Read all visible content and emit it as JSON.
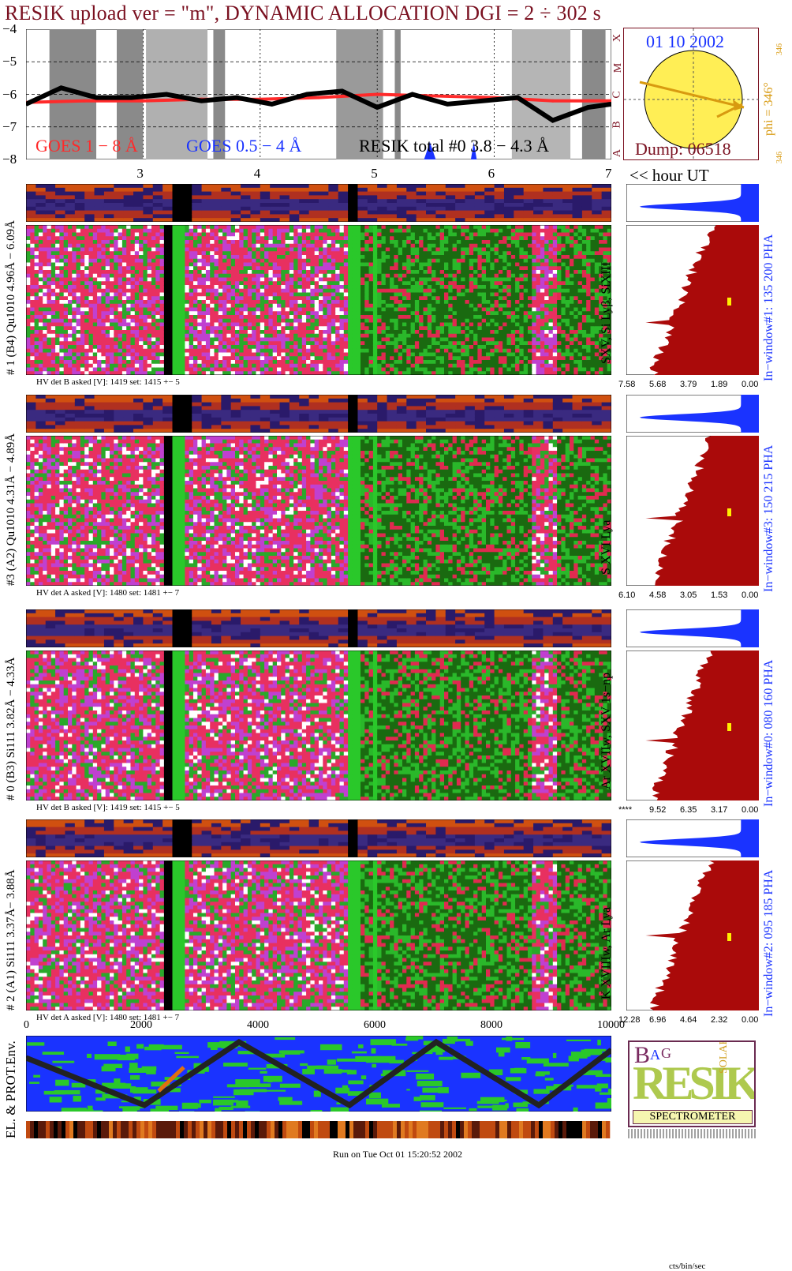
{
  "title": "RESIK upload ver = \"m\", DYNAMIC ALLOCATION  DGI =   2 ÷ 302 s",
  "goes": {
    "y_ticks": [
      "−4",
      "−5",
      "−6",
      "−7",
      "−8"
    ],
    "legend_goes_long": "GOES 1 − 8 Å",
    "legend_goes_short": "GOES 0.5 − 4 Å",
    "legend_resik": "RESIK total #0  3.8 − 4.3 Å",
    "class_letters": [
      "X",
      "M",
      "C",
      "B",
      "A"
    ],
    "hour_ticks": [
      "3",
      "4",
      "5",
      "6",
      "7"
    ],
    "hour_label": "<< hour UT",
    "colors": {
      "goes_long": "#ff2a2a",
      "goes_short": "#1a33ff",
      "resik": "#000000"
    }
  },
  "sun": {
    "date": "01 10 2002",
    "phi": "phi = 346°",
    "phi_small_top": "346",
    "phi_small_bottom": "346",
    "dump": "Dump: 06518"
  },
  "panels": [
    {
      "left_label": "# 1 (B4) Qu1010 4.96Å − 6.09Å",
      "right_label": "SXV, Si Lyβ, SiXIII",
      "window_label": "In−window#1:  135 200 PHA",
      "hv": "HV det B asked [V]:  1419 set:  1415  +−    5",
      "scale": [
        "7.58",
        "5.68",
        "3.79",
        "1.89",
        "0.00"
      ]
    },
    {
      "left_label": "#3 (A2) Qu1010  4.31Å − 4.89Å",
      "right_label": "S XVI Lya",
      "window_label": "In−window#3:  150 215 PHA",
      "hv": "HV det A asked [V]:  1480 set:  1481  +−    7",
      "scale": [
        "6.10",
        "4.58",
        "3.05",
        "1.53",
        "0.00"
      ]
    },
    {
      "left_label": "# 0 (B3) Si111  3.82Å − 4.33Å",
      "right_label": "Ar XVIIw, SXV 1s−np",
      "window_label": "In−window#0:  080 160 PHA",
      "hv": "HV det B asked [V]:  1419 set:  1415  +−    5",
      "scale": [
        "****",
        "9.52",
        "6.35",
        "3.17",
        "0.00"
      ]
    },
    {
      "left_label": "# 2 (A1) Si111  3.37Å− 3.88Å",
      "right_label": "K XVIIIw, Ar Lya",
      "window_label": "In−window#2:  095 185 PHA",
      "hv": "HV det A asked [V]:  1480 set:  1481  +−    7",
      "scale": [
        "12.28",
        "6.96",
        "4.64",
        "2.32",
        "0.00"
      ]
    }
  ],
  "x_ticks": [
    "0",
    "2000",
    "4000",
    "6000",
    "8000",
    "10000"
  ],
  "cts_label": "cts/bin/sec",
  "env_label": "EL. & PROT.Env.",
  "logo": {
    "big": "RESIK",
    "letters": [
      "B",
      "A",
      "G",
      "SOLAR"
    ],
    "banner": "SPECTROMETER"
  },
  "run_text": "Run on Tue Oct 01 15:20:52 2002",
  "chart_data": {
    "type": "line",
    "title": "RESIK upload ver = \"m\", DYNAMIC ALLOCATION  DGI =   2 ÷ 302 s",
    "xlabel": "hour UT",
    "ylabel": "",
    "x_ticks": [
      3,
      4,
      5,
      6,
      7
    ],
    "y_ticks": [
      -4,
      -5,
      -6,
      -7,
      -8
    ],
    "ylim": [
      -8,
      -4
    ],
    "xlim": [
      2.0,
      7.0
    ],
    "series": [
      {
        "name": "GOES 1 − 8 Å",
        "x": [
          2.0,
          2.5,
          3.0,
          3.5,
          4.0,
          4.5,
          5.0,
          5.5,
          6.0,
          6.5,
          7.0
        ],
        "values": [
          -6.25,
          -6.2,
          -6.2,
          -6.15,
          -6.15,
          -6.1,
          -6.0,
          -6.05,
          -6.1,
          -6.2,
          -6.2
        ]
      },
      {
        "name": "RESIK total #0  3.8 − 4.3 Å",
        "x": [
          2.0,
          2.3,
          2.6,
          2.9,
          3.2,
          3.5,
          3.8,
          4.1,
          4.4,
          4.7,
          5.0,
          5.3,
          5.6,
          5.9,
          6.2,
          6.5,
          6.8,
          7.0
        ],
        "values": [
          -6.3,
          -5.8,
          -6.1,
          -6.1,
          -6.0,
          -6.2,
          -6.1,
          -6.3,
          -6.0,
          -5.9,
          -6.4,
          -6.0,
          -6.3,
          -6.2,
          -6.1,
          -6.8,
          -6.4,
          -6.3
        ]
      }
    ]
  }
}
